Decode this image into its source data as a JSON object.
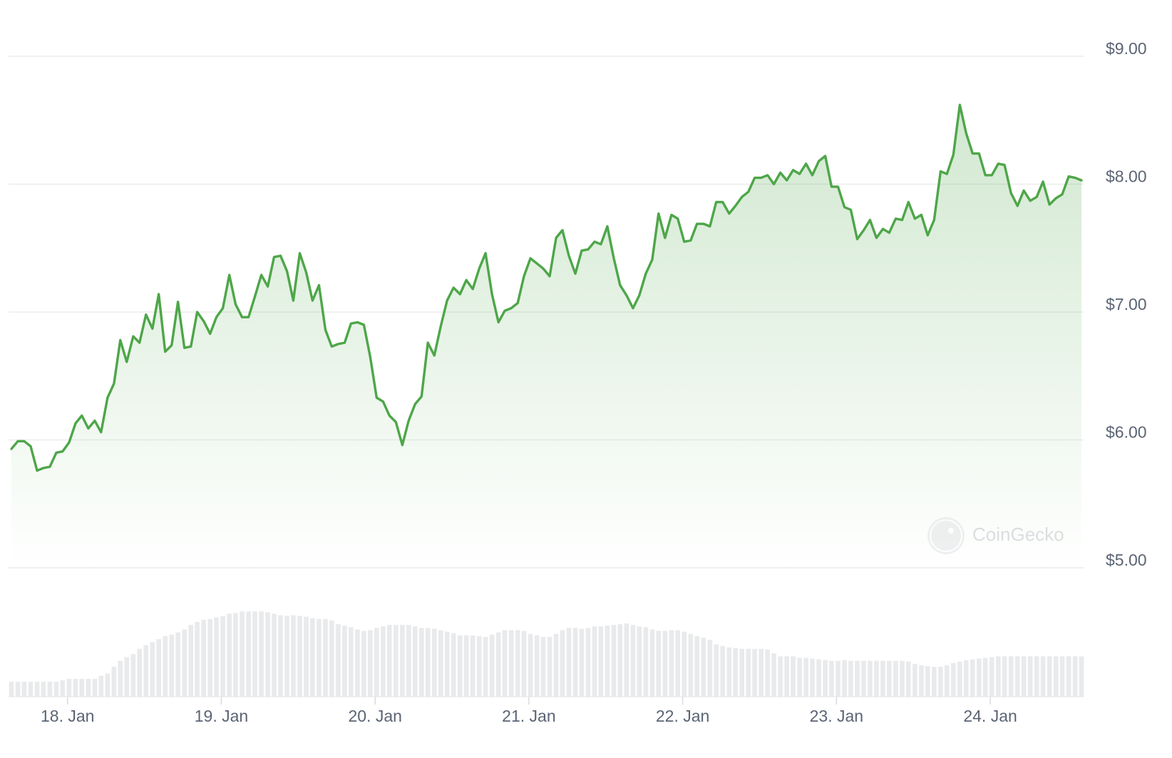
{
  "chart_data": {
    "type": "line",
    "color": "#4ea649",
    "volume_color": "#e9eaec",
    "grid": true,
    "watermark": "CoinGecko",
    "xlim": [
      17.635,
      24.593
    ],
    "xticks": [
      {
        "value": 18,
        "label": "18. Jan"
      },
      {
        "value": 19,
        "label": "19. Jan"
      },
      {
        "value": 20,
        "label": "20. Jan"
      },
      {
        "value": 21,
        "label": "21. Jan"
      },
      {
        "value": 22,
        "label": "22. Jan"
      },
      {
        "value": 23,
        "label": "23. Jan"
      },
      {
        "value": 24,
        "label": "24. Jan"
      }
    ],
    "ylim": [
      5,
      9
    ],
    "yticks": [
      {
        "value": 5,
        "label": "$5.00"
      },
      {
        "value": 6,
        "label": "$6.00"
      },
      {
        "value": 7,
        "label": "$7.00"
      },
      {
        "value": 8,
        "label": "$8.00"
      },
      {
        "value": 9,
        "label": "$9.00"
      }
    ],
    "volume_ylim": [
      0,
      120
    ],
    "x": [
      17.635,
      17.677,
      17.718,
      17.76,
      17.802,
      17.843,
      17.885,
      17.927,
      17.968,
      18.01,
      18.052,
      18.093,
      18.135,
      18.177,
      18.218,
      18.26,
      18.302,
      18.343,
      18.385,
      18.427,
      18.468,
      18.51,
      18.552,
      18.593,
      18.635,
      18.677,
      18.718,
      18.76,
      18.802,
      18.843,
      18.885,
      18.927,
      18.968,
      19.01,
      19.052,
      19.093,
      19.135,
      19.177,
      19.218,
      19.26,
      19.302,
      19.343,
      19.385,
      19.427,
      19.468,
      19.51,
      19.552,
      19.593,
      19.635,
      19.677,
      19.718,
      19.76,
      19.802,
      19.843,
      19.885,
      19.927,
      19.968,
      20.01,
      20.052,
      20.093,
      20.135,
      20.177,
      20.218,
      20.26,
      20.302,
      20.343,
      20.385,
      20.427,
      20.468,
      20.51,
      20.552,
      20.593,
      20.635,
      20.677,
      20.718,
      20.76,
      20.802,
      20.843,
      20.885,
      20.927,
      20.968,
      21.01,
      21.052,
      21.093,
      21.135,
      21.177,
      21.218,
      21.26,
      21.302,
      21.343,
      21.385,
      21.427,
      21.468,
      21.51,
      21.552,
      21.593,
      21.635,
      21.677,
      21.718,
      21.76,
      21.802,
      21.843,
      21.885,
      21.927,
      21.968,
      22.01,
      22.052,
      22.093,
      22.135,
      22.177,
      22.218,
      22.26,
      22.302,
      22.343,
      22.385,
      22.427,
      22.468,
      22.51,
      22.552,
      22.593,
      22.635,
      22.677,
      22.718,
      22.76,
      22.802,
      22.843,
      22.885,
      22.927,
      22.968,
      23.01,
      23.052,
      23.093,
      23.135,
      23.177,
      23.218,
      23.26,
      23.302,
      23.343,
      23.385,
      23.427,
      23.468,
      23.51,
      23.552,
      23.593,
      23.635,
      23.677,
      23.718,
      23.76,
      23.802,
      23.843,
      23.885,
      23.927,
      23.968,
      24.01,
      24.052,
      24.093,
      24.135,
      24.177,
      24.218,
      24.26,
      24.302,
      24.343,
      24.385,
      24.427,
      24.468,
      24.51,
      24.552,
      24.593
    ],
    "values": [
      5.93,
      5.99,
      5.99,
      5.95,
      5.76,
      5.78,
      5.79,
      5.9,
      5.91,
      5.98,
      6.13,
      6.19,
      6.09,
      6.15,
      6.06,
      6.33,
      6.44,
      6.78,
      6.61,
      6.81,
      6.76,
      6.98,
      6.87,
      7.14,
      6.69,
      6.74,
      7.08,
      6.72,
      6.73,
      7.0,
      6.93,
      6.83,
      6.96,
      7.03,
      7.29,
      7.06,
      6.96,
      6.96,
      7.12,
      7.29,
      7.2,
      7.43,
      7.44,
      7.32,
      7.09,
      7.46,
      7.31,
      7.09,
      7.21,
      6.86,
      6.73,
      6.75,
      6.76,
      6.91,
      6.92,
      6.9,
      6.65,
      6.33,
      6.3,
      6.19,
      6.14,
      5.96,
      6.15,
      6.28,
      6.34,
      6.76,
      6.66,
      6.89,
      7.09,
      7.19,
      7.14,
      7.25,
      7.18,
      7.34,
      7.46,
      7.14,
      6.92,
      7.01,
      7.03,
      7.07,
      7.28,
      7.42,
      7.38,
      7.34,
      7.28,
      7.58,
      7.64,
      7.44,
      7.3,
      7.48,
      7.49,
      7.55,
      7.53,
      7.67,
      7.42,
      7.21,
      7.13,
      7.03,
      7.13,
      7.3,
      7.41,
      7.77,
      7.58,
      7.76,
      7.73,
      7.55,
      7.56,
      7.69,
      7.69,
      7.67,
      7.86,
      7.86,
      7.77,
      7.83,
      7.9,
      7.94,
      8.05,
      8.05,
      8.07,
      8.0,
      8.09,
      8.03,
      8.11,
      8.08,
      8.16,
      8.07,
      8.18,
      8.22,
      7.98,
      7.98,
      7.82,
      7.8,
      7.57,
      7.64,
      7.72,
      7.58,
      7.65,
      7.62,
      7.73,
      7.72,
      7.86,
      7.73,
      7.76,
      7.6,
      7.72,
      8.1,
      8.08,
      8.23,
      8.62,
      8.4,
      8.24,
      8.24,
      8.07,
      8.07,
      8.16,
      8.15,
      7.93,
      7.83,
      7.95,
      7.87,
      7.9,
      8.02,
      7.84,
      7.89,
      7.92,
      8.06,
      8.05,
      8.03
    ],
    "volumes": [
      20,
      20,
      20,
      20,
      20,
      20,
      20,
      20,
      22,
      24,
      24,
      24,
      24,
      24,
      28,
      31,
      40,
      48,
      53,
      57,
      64,
      69,
      73,
      77,
      81,
      83,
      86,
      90,
      96,
      100,
      103,
      104,
      106,
      108,
      111,
      112,
      114,
      114,
      114,
      114,
      113,
      111,
      109,
      108,
      109,
      108,
      107,
      105,
      104,
      104,
      102,
      97,
      95,
      93,
      90,
      88,
      89,
      92,
      94,
      96,
      96,
      96,
      96,
      94,
      92,
      92,
      91,
      89,
      87,
      85,
      82,
      82,
      82,
      81,
      80,
      83,
      86,
      89,
      89,
      89,
      88,
      84,
      82,
      80,
      80,
      84,
      89,
      92,
      92,
      91,
      92,
      94,
      94,
      95,
      96,
      97,
      98,
      96,
      94,
      93,
      90,
      88,
      88,
      89,
      89,
      87,
      84,
      81,
      79,
      76,
      70,
      68,
      66,
      65,
      64,
      64,
      64,
      64,
      63,
      58,
      54,
      54,
      54,
      52,
      52,
      51,
      50,
      49,
      48,
      48,
      49,
      48,
      48,
      48,
      48,
      48,
      48,
      48,
      48,
      48,
      47,
      44,
      42,
      41,
      40,
      40,
      42,
      45,
      47,
      49,
      50,
      51,
      52,
      53,
      54,
      54,
      54,
      54,
      54,
      54,
      54,
      54,
      54,
      54,
      54,
      54,
      54,
      54
    ]
  }
}
